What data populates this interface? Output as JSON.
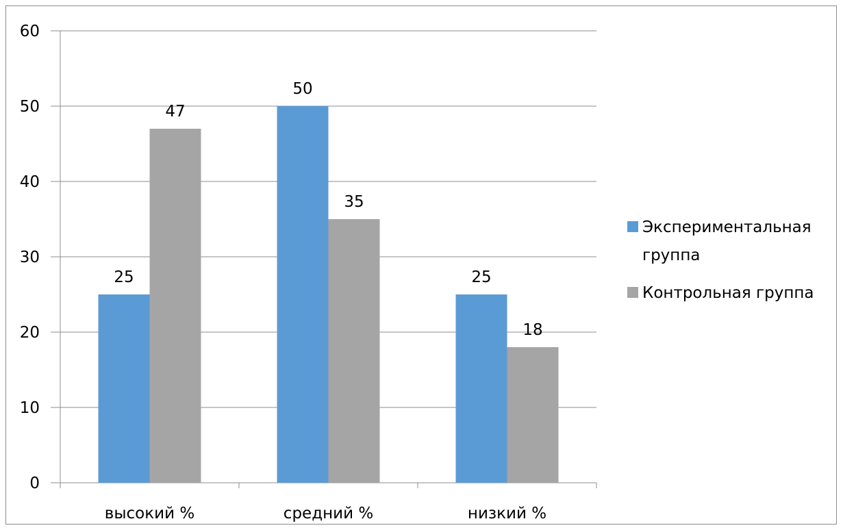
{
  "chart_data": {
    "type": "bar",
    "title": "",
    "xlabel": "",
    "ylabel": "",
    "categories": [
      "высокий %",
      "средний %",
      "низкий %"
    ],
    "series": [
      {
        "name": "Экспериментальная группа",
        "legend_lines": [
          "Экспериментальная",
          "группа"
        ],
        "color": "#5b9bd5",
        "values": [
          25,
          50,
          25
        ]
      },
      {
        "name": "Контрольная группа",
        "legend_lines": [
          "Контрольная группа"
        ],
        "color": "#a5a5a5",
        "values": [
          47,
          35,
          18
        ]
      }
    ],
    "ylim": [
      0,
      60
    ],
    "yticks": [
      "0",
      "10",
      "20",
      "30",
      "40",
      "50",
      "60"
    ],
    "grid": true,
    "legend_position": "right"
  }
}
